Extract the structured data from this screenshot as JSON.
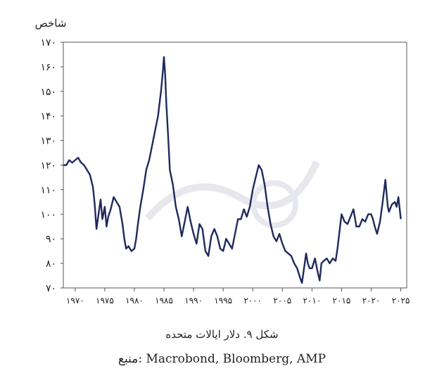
{
  "chart_data": {
    "type": "line",
    "ylabel": "شاخص",
    "ylim": [
      70,
      170
    ],
    "xlim": [
      1968,
      2026
    ],
    "y_ticks": [
      70,
      80,
      90,
      100,
      110,
      120,
      130,
      140,
      150,
      160,
      170
    ],
    "y_tick_labels": [
      "۷۰",
      "۸۰",
      "۹۰",
      "۱۰۰",
      "۱۱۰",
      "۱۲۰",
      "۱۳۰",
      "۱۴۰",
      "۱۵۰",
      "۱۶۰",
      "۱۷۰"
    ],
    "x_ticks": [
      1970,
      1975,
      1980,
      1985,
      1990,
      1995,
      2000,
      2005,
      2010,
      2015,
      2020,
      2025
    ],
    "x_tick_labels": [
      "۱۹۷۰",
      "۱۹۷۵",
      "۱۹۸۰",
      "۱۹۸۵",
      "۱۹۹۰",
      "۱۹۹۵",
      "۲۰۰۰",
      "۲۰۰۵",
      "۲۰۱۰",
      "۲۰۱۵",
      "۲۰۲۰",
      "۲۰۲۵"
    ],
    "grid": false,
    "series": [
      {
        "color": "#1f2a5c",
        "x": [
          1968.0,
          1968.5,
          1969.0,
          1969.5,
          1970.0,
          1970.5,
          1971.0,
          1971.5,
          1972.0,
          1972.5,
          1973.0,
          1973.3,
          1973.6,
          1974.0,
          1974.3,
          1974.6,
          1975.0,
          1975.3,
          1975.6,
          1976.0,
          1976.5,
          1977.0,
          1977.5,
          1978.0,
          1978.3,
          1978.6,
          1979.0,
          1979.5,
          1980.0,
          1980.3,
          1980.6,
          1981.0,
          1981.5,
          1982.0,
          1982.5,
          1983.0,
          1983.5,
          1984.0,
          1984.5,
          1984.8,
          1985.0,
          1985.2,
          1985.4,
          1985.7,
          1986.0,
          1986.5,
          1987.0,
          1987.5,
          1988.0,
          1988.5,
          1989.0,
          1989.5,
          1990.0,
          1990.5,
          1991.0,
          1991.5,
          1992.0,
          1992.5,
          1993.0,
          1993.5,
          1994.0,
          1994.5,
          1995.0,
          1995.5,
          1996.0,
          1996.5,
          1997.0,
          1997.5,
          1998.0,
          1998.5,
          1999.0,
          1999.5,
          2000.0,
          2000.5,
          2001.0,
          2001.5,
          2002.0,
          2002.5,
          2003.0,
          2003.5,
          2004.0,
          2004.5,
          2005.0,
          2005.5,
          2006.0,
          2006.5,
          2007.0,
          2007.5,
          2008.0,
          2008.3,
          2008.6,
          2009.0,
          2009.3,
          2009.6,
          2010.0,
          2010.5,
          2011.0,
          2011.3,
          2011.6,
          2012.0,
          2012.5,
          2013.0,
          2013.5,
          2014.0,
          2014.3,
          2014.6,
          2015.0,
          2015.5,
          2016.0,
          2016.5,
          2017.0,
          2017.5,
          2018.0,
          2018.5,
          2019.0,
          2019.5,
          2020.0,
          2020.3,
          2020.6,
          2021.0,
          2021.5,
          2022.0,
          2022.4,
          2022.8,
          2023.0,
          2023.5,
          2024.0,
          2024.3,
          2024.6,
          2025.0
        ],
        "y": [
          120,
          120,
          122,
          121,
          122,
          123,
          121,
          120,
          118,
          116,
          111,
          104,
          94,
          101,
          106,
          98,
          103,
          95,
          99,
          102,
          107,
          105,
          103,
          96,
          90,
          86,
          87,
          85,
          86,
          90,
          96,
          103,
          110,
          118,
          122,
          128,
          134,
          140,
          150,
          158,
          164,
          157,
          145,
          132,
          118,
          112,
          103,
          98,
          91,
          97,
          103,
          97,
          92,
          88,
          96,
          94,
          85,
          83,
          91,
          94,
          91,
          86,
          85,
          90,
          88,
          86,
          92,
          98,
          98,
          102,
          99,
          103,
          110,
          115,
          120,
          118,
          112,
          103,
          96,
          91,
          89,
          92,
          88,
          85,
          84,
          83,
          80,
          78,
          74,
          72,
          77,
          84,
          80,
          78,
          78,
          82,
          76,
          73,
          80,
          81,
          82,
          80,
          82,
          81,
          86,
          92,
          100,
          97,
          96,
          99,
          102,
          95,
          95,
          98,
          97,
          100,
          100,
          98,
          95,
          92,
          97,
          106,
          114,
          103,
          101,
          104,
          105,
          103,
          107,
          98
        ]
      }
    ]
  },
  "caption": {
    "figure": "شکل ۹. دلار ایالات متحده",
    "source": "منبع: Macrobond, Bloomberg, AMP"
  },
  "colors": {
    "line": "#1f2a5c",
    "frame": "#555555",
    "text": "#222222"
  }
}
